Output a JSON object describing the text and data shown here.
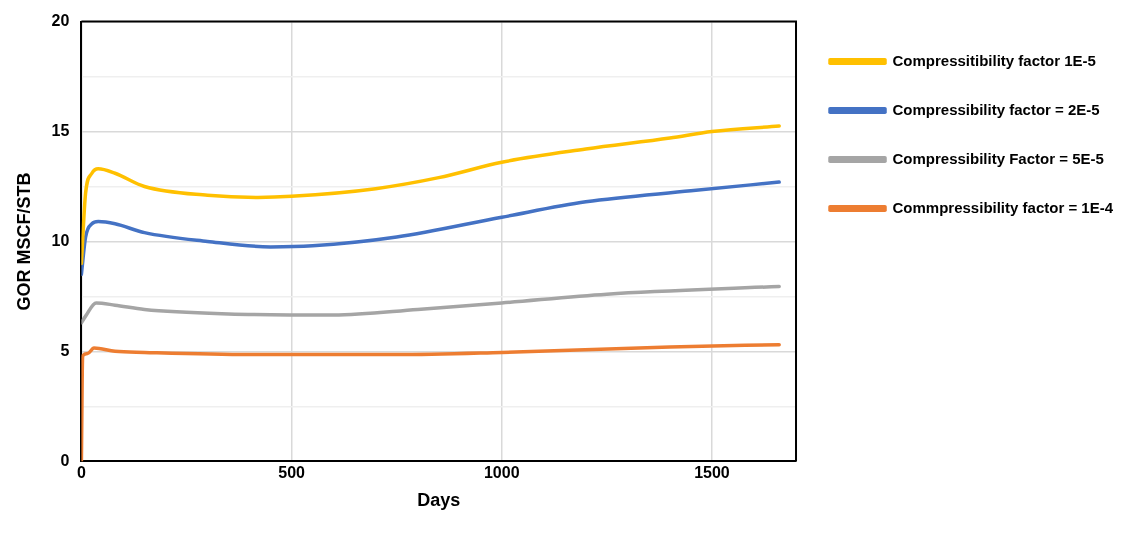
{
  "chart_data": {
    "type": "line",
    "xlabel": "Days",
    "ylabel": "GOR MSCF/STB",
    "xlim": [
      0,
      1700
    ],
    "xticks": [
      0,
      500,
      1000,
      1500
    ],
    "ylim": [
      0,
      20
    ],
    "yticks": [
      0,
      {
        "value": 2.5,
        "label": null
      },
      5,
      {
        "value": 7.5,
        "label": null
      },
      10,
      {
        "value": 12.5,
        "label": null
      },
      15,
      {
        "value": 17.5,
        "label": null
      },
      20
    ],
    "grid": true,
    "legend": "right",
    "marker": "none",
    "line_style": "solid",
    "series": [
      {
        "name": "Compressitibility factor 1E-5",
        "color": "#ffc000",
        "x": [
          0,
          10,
          25,
          40,
          80,
          150,
          300,
          420,
          500,
          700,
          850,
          1000,
          1200,
          1400,
          1500,
          1660
        ],
        "values": [
          9,
          12.2,
          13.1,
          13.3,
          13.1,
          12.5,
          12.1,
          12.0,
          12.05,
          12.4,
          12.9,
          13.6,
          14.2,
          14.7,
          15.0,
          15.25
        ]
      },
      {
        "name": "Compressibility factor = 2E-5",
        "color": "#4472c4",
        "x": [
          0,
          10,
          25,
          40,
          80,
          150,
          300,
          450,
          550,
          750,
          1000,
          1200,
          1450,
          1660
        ],
        "values": [
          8.5,
          10.2,
          10.8,
          10.9,
          10.8,
          10.4,
          10.0,
          9.75,
          9.8,
          10.2,
          11.1,
          11.8,
          12.3,
          12.7
        ]
      },
      {
        "name": "Compressibility Factor = 5E-5",
        "color": "#a5a5a5",
        "x": [
          0,
          10,
          35,
          80,
          150,
          350,
          600,
          800,
          1000,
          1250,
          1660
        ],
        "values": [
          6.3,
          6.6,
          7.2,
          7.1,
          6.9,
          6.7,
          6.65,
          6.9,
          7.2,
          7.6,
          7.95
        ]
      },
      {
        "name": "Commpressibility factor = 1E-4",
        "color": "#ed7d31",
        "x": [
          0,
          3,
          15,
          30,
          80,
          150,
          400,
          750,
          1000,
          1400,
          1660
        ],
        "values": [
          0,
          4.8,
          4.9,
          5.15,
          5.0,
          4.95,
          4.85,
          4.85,
          4.95,
          5.2,
          5.3
        ]
      }
    ]
  }
}
